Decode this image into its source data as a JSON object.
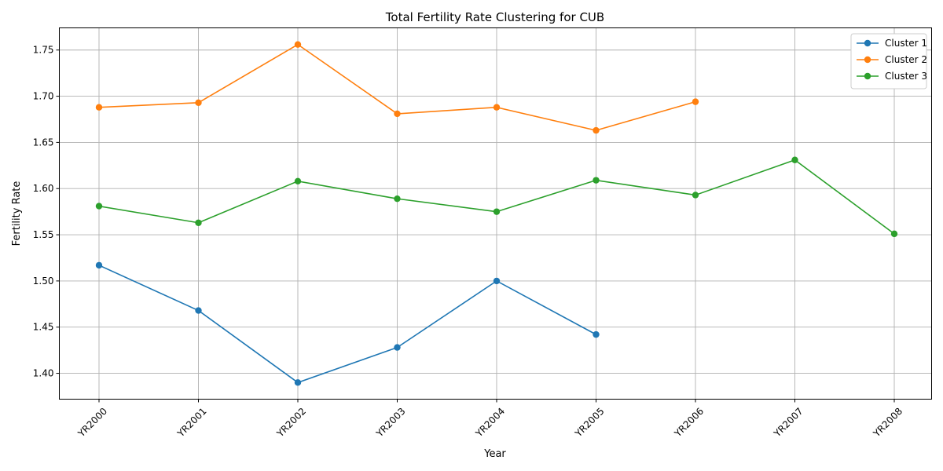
{
  "chart_data": {
    "type": "line",
    "title": "Total Fertility Rate Clustering for CUB",
    "xlabel": "Year",
    "ylabel": "Fertility Rate",
    "categories": [
      "YR2000",
      "YR2001",
      "YR2002",
      "YR2003",
      "YR2004",
      "YR2005",
      "YR2006",
      "YR2007",
      "YR2008"
    ],
    "ylim": [
      1.372,
      1.774
    ],
    "yticks": [
      1.4,
      1.45,
      1.5,
      1.55,
      1.6,
      1.65,
      1.7,
      1.75
    ],
    "ytick_labels": [
      "1.40",
      "1.45",
      "1.50",
      "1.55",
      "1.60",
      "1.65",
      "1.70",
      "1.75"
    ],
    "grid": true,
    "legend_position": "top-right",
    "series": [
      {
        "name": "Cluster 1",
        "color": "#1f77b4",
        "points": [
          {
            "x": "YR2000",
            "y": 1.517
          },
          {
            "x": "YR2001",
            "y": 1.468
          },
          {
            "x": "YR2002",
            "y": 1.39
          },
          {
            "x": "YR2003",
            "y": 1.428
          },
          {
            "x": "YR2004",
            "y": 1.5
          },
          {
            "x": "YR2005",
            "y": 1.442
          }
        ]
      },
      {
        "name": "Cluster 2",
        "color": "#ff7f0e",
        "points": [
          {
            "x": "YR2000",
            "y": 1.688
          },
          {
            "x": "YR2001",
            "y": 1.693
          },
          {
            "x": "YR2002",
            "y": 1.756
          },
          {
            "x": "YR2003",
            "y": 1.681
          },
          {
            "x": "YR2004",
            "y": 1.688
          },
          {
            "x": "YR2005",
            "y": 1.663
          },
          {
            "x": "YR2006",
            "y": 1.694
          }
        ]
      },
      {
        "name": "Cluster 3",
        "color": "#2ca02c",
        "points": [
          {
            "x": "YR2000",
            "y": 1.581
          },
          {
            "x": "YR2001",
            "y": 1.563
          },
          {
            "x": "YR2002",
            "y": 1.608
          },
          {
            "x": "YR2003",
            "y": 1.589
          },
          {
            "x": "YR2004",
            "y": 1.575
          },
          {
            "x": "YR2005",
            "y": 1.609
          },
          {
            "x": "YR2006",
            "y": 1.593
          },
          {
            "x": "YR2007",
            "y": 1.631
          },
          {
            "x": "YR2008",
            "y": 1.551
          }
        ]
      }
    ]
  }
}
